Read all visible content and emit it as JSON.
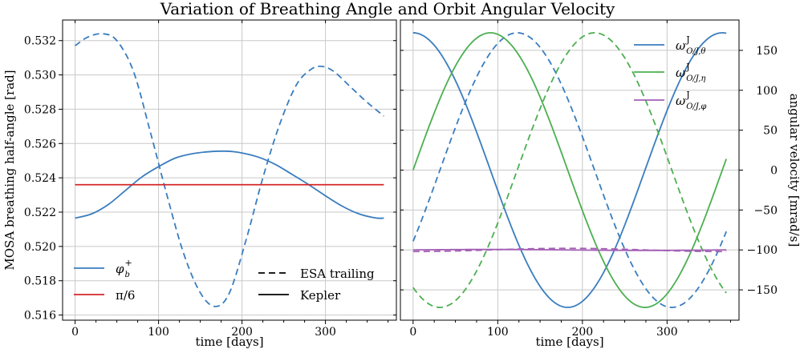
{
  "title": "Variation of Breathing Angle and Orbit Angular Velocity",
  "chart_data": [
    {
      "type": "line",
      "xlabel": "time [days]",
      "ylabel": "MOSA breathing half-angle [rad]",
      "xlim": [
        -15,
        385
      ],
      "ylim": [
        0.5157,
        0.5332
      ],
      "xticks": [
        0,
        100,
        200,
        300
      ],
      "yticks": [
        0.516,
        0.518,
        0.52,
        0.522,
        0.524,
        0.526,
        0.528,
        0.53,
        0.532
      ],
      "ytick_labels": [
        "0.516",
        "0.518",
        "0.520",
        "0.522",
        "0.524",
        "0.526",
        "0.528",
        "0.530",
        "0.532"
      ],
      "grid": true,
      "series": [
        {
          "name": "φ_b^+ (Kepler)",
          "color": "#3a7dbf",
          "style": "solid",
          "x": [
            0,
            20,
            40,
            60,
            80,
            100,
            120,
            140,
            160,
            183,
            200,
            220,
            240,
            260,
            280,
            300,
            320,
            340,
            360,
            370
          ],
          "values": [
            0.52165,
            0.5219,
            0.52245,
            0.52325,
            0.52405,
            0.52465,
            0.52515,
            0.5254,
            0.52552,
            0.52555,
            0.52545,
            0.5252,
            0.52478,
            0.5242,
            0.5236,
            0.52295,
            0.52235,
            0.5219,
            0.52166,
            0.52165
          ]
        },
        {
          "name": "φ_b^+ (ESA trailing)",
          "color": "#3a7dbf",
          "style": "dashed",
          "x": [
            0,
            15,
            33,
            50,
            70,
            90,
            110,
            130,
            150,
            168,
            185,
            205,
            225,
            245,
            265,
            282,
            295,
            310,
            330,
            350,
            370
          ],
          "values": [
            0.5317,
            0.5322,
            0.5324,
            0.532,
            0.5302,
            0.5267,
            0.523,
            0.5196,
            0.5173,
            0.5165,
            0.5173,
            0.5204,
            0.524,
            0.5271,
            0.5294,
            0.5303,
            0.5305,
            0.5302,
            0.5293,
            0.5284,
            0.5276
          ]
        },
        {
          "name": "π/6",
          "color": "#d62728",
          "style": "solid",
          "x": [
            0,
            370
          ],
          "values": [
            0.5236,
            0.5236
          ]
        }
      ],
      "legend": [
        {
          "label": "φ",
          "sub": "b",
          "sup": "+",
          "color": "#3a7dbf",
          "style": "solid"
        },
        {
          "label": "π/6",
          "color": "#d62728",
          "style": "solid"
        },
        {
          "label": "ESA trailing",
          "color": "#000000",
          "style": "dashed"
        },
        {
          "label": "Kepler",
          "color": "#000000",
          "style": "solid"
        }
      ]
    },
    {
      "type": "line",
      "xlabel": "time [days]",
      "ylabel": "angular velocity [mrad/s]",
      "xlim": [
        -15,
        385
      ],
      "ylim": [
        -188,
        188
      ],
      "xticks": [
        0,
        100,
        200,
        300
      ],
      "yticks": [
        -150,
        -100,
        -50,
        0,
        50,
        100,
        150
      ],
      "ytick_labels": [
        "−150",
        "−100",
        "−50",
        "0",
        "50",
        "100",
        "150"
      ],
      "grid": true,
      "series": [
        {
          "name": "ω_θ (Kepler)",
          "color": "#3a7dbf",
          "style": "solid",
          "amplitude": 172,
          "offset": 0,
          "phase_deg": 90,
          "phase_day": 0,
          "range": [
            0,
            370
          ]
        },
        {
          "name": "ω_θ (ESA trailing)",
          "color": "#3a7dbf",
          "style": "dashed",
          "amplitude": 172,
          "offset": 0,
          "phase_deg": 90,
          "phase_day": 123,
          "range": [
            0,
            370
          ]
        },
        {
          "name": "ω_η (Kepler)",
          "color": "#4caf50",
          "style": "solid",
          "amplitude": 172,
          "offset": 0,
          "phase_deg": 0,
          "phase_day": 0,
          "range": [
            0,
            370
          ]
        },
        {
          "name": "ω_η (ESA trailing)",
          "color": "#4caf50",
          "style": "dashed",
          "amplitude": 172,
          "offset": 0,
          "phase_deg": 0,
          "phase_day": 123,
          "range": [
            0,
            370
          ]
        },
        {
          "name": "ω_φ (Kepler)",
          "color": "#a35fb5",
          "style": "solid",
          "amplitude": 0.6,
          "offset": -100,
          "phase_deg": 0,
          "phase_day": 0,
          "range": [
            0,
            370
          ]
        },
        {
          "name": "ω_φ (ESA trailing)",
          "color": "#a35fb5",
          "style": "dashed",
          "amplitude": 2,
          "offset": -100,
          "phase_deg": -90,
          "phase_day": 0,
          "range": [
            0,
            370
          ]
        }
      ],
      "legend": [
        {
          "label": "ω",
          "sub": "O/J,θ",
          "sup": "J",
          "color": "#3a7dbf",
          "style": "solid"
        },
        {
          "label": "ω",
          "sub": "O/J,η",
          "sup": "J",
          "color": "#4caf50",
          "style": "solid"
        },
        {
          "label": "ω",
          "sub": "O/J,φ",
          "sup": "J",
          "color": "#a35fb5",
          "style": "solid"
        }
      ]
    }
  ]
}
